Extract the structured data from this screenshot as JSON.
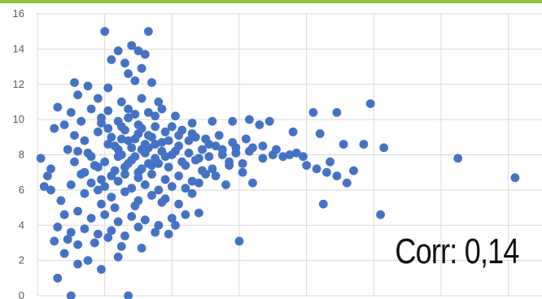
{
  "annotation": "Corr: 0,14",
  "colors": {
    "accent_bar": "#8dc63f",
    "marker": "#4472c4",
    "gridline": "#d9d9d9"
  },
  "chart_data": {
    "type": "scatter",
    "title": "",
    "xlabel": "",
    "ylabel": "",
    "ylim": [
      0,
      16
    ],
    "yticks": [
      "0",
      "2",
      "4",
      "6",
      "8",
      "10",
      "12",
      "14",
      "16"
    ],
    "x_tick_labels_visible": false,
    "grid": true,
    "legend": "none",
    "annotation": "Corr: 0,14",
    "correlation": 0.14,
    "series": [
      {
        "points": [
          [
            1.0,
            15.0
          ],
          [
            1.4,
            14.2
          ],
          [
            1.65,
            15.0
          ],
          [
            1.5,
            13.9
          ],
          [
            1.2,
            13.9
          ],
          [
            1.1,
            13.4
          ],
          [
            1.3,
            13.2
          ],
          [
            1.6,
            13.7
          ],
          [
            1.55,
            12.9
          ],
          [
            1.35,
            12.6
          ],
          [
            0.55,
            12.1
          ],
          [
            0.75,
            11.9
          ],
          [
            1.05,
            11.8
          ],
          [
            1.45,
            12.2
          ],
          [
            1.7,
            12.1
          ],
          [
            0.6,
            11.4
          ],
          [
            0.9,
            11.2
          ],
          [
            1.25,
            11.0
          ],
          [
            1.55,
            11.2
          ],
          [
            1.8,
            11.0
          ],
          [
            0.3,
            10.7
          ],
          [
            0.5,
            10.4
          ],
          [
            0.8,
            10.6
          ],
          [
            1.05,
            10.5
          ],
          [
            1.35,
            10.6
          ],
          [
            1.65,
            10.4
          ],
          [
            1.85,
            10.6
          ],
          [
            2.05,
            10.2
          ],
          [
            0.25,
            9.5
          ],
          [
            0.4,
            9.7
          ],
          [
            0.65,
            9.9
          ],
          [
            0.95,
            9.8
          ],
          [
            1.2,
            9.9
          ],
          [
            1.5,
            9.7
          ],
          [
            1.75,
            9.6
          ],
          [
            2.0,
            9.6
          ],
          [
            2.3,
            9.8
          ],
          [
            2.6,
            9.9
          ],
          [
            2.9,
            9.9
          ],
          [
            3.15,
            10.0
          ],
          [
            3.45,
            9.9
          ],
          [
            4.1,
            10.4
          ],
          [
            4.45,
            10.4
          ],
          [
            4.95,
            10.9
          ],
          [
            3.3,
            9.7
          ],
          [
            3.8,
            9.3
          ],
          [
            4.2,
            9.2
          ],
          [
            4.55,
            8.6
          ],
          [
            4.85,
            8.6
          ],
          [
            5.15,
            8.4
          ],
          [
            0.05,
            7.8
          ],
          [
            0.15,
            6.8
          ],
          [
            0.1,
            6.2
          ],
          [
            0.2,
            7.2
          ],
          [
            0.35,
            5.4
          ],
          [
            0.45,
            8.3
          ],
          [
            0.55,
            7.6
          ],
          [
            0.65,
            6.9
          ],
          [
            0.75,
            8.1
          ],
          [
            0.85,
            7.4
          ],
          [
            0.95,
            6.6
          ],
          [
            1.05,
            8.6
          ],
          [
            1.15,
            7.1
          ],
          [
            1.25,
            8.0
          ],
          [
            1.35,
            7.5
          ],
          [
            1.45,
            8.9
          ],
          [
            1.55,
            7.2
          ],
          [
            1.65,
            8.4
          ],
          [
            1.75,
            7.8
          ],
          [
            1.85,
            8.7
          ],
          [
            1.95,
            7.3
          ],
          [
            2.05,
            8.2
          ],
          [
            2.15,
            7.6
          ],
          [
            2.25,
            8.8
          ],
          [
            2.35,
            7.7
          ],
          [
            2.45,
            8.3
          ],
          [
            2.55,
            7.9
          ],
          [
            2.65,
            8.5
          ],
          [
            2.75,
            8.0
          ],
          [
            2.85,
            7.6
          ],
          [
            2.95,
            8.1
          ],
          [
            3.05,
            7.5
          ],
          [
            3.2,
            8.4
          ],
          [
            3.35,
            7.8
          ],
          [
            3.5,
            8.0
          ],
          [
            3.65,
            7.9
          ],
          [
            3.85,
            8.1
          ],
          [
            4.0,
            7.4
          ],
          [
            4.15,
            7.2
          ],
          [
            4.3,
            7.0
          ],
          [
            4.45,
            6.8
          ],
          [
            4.6,
            6.4
          ],
          [
            4.25,
            5.2
          ],
          [
            3.2,
            6.4
          ],
          [
            2.8,
            6.3
          ],
          [
            6.25,
            7.8
          ],
          [
            7.1,
            6.7
          ],
          [
            5.1,
            4.6
          ],
          [
            3.0,
            3.1
          ],
          [
            0.2,
            6.0
          ],
          [
            0.5,
            6.3
          ],
          [
            0.7,
            5.8
          ],
          [
            0.9,
            6.0
          ],
          [
            1.1,
            5.6
          ],
          [
            1.3,
            5.9
          ],
          [
            1.5,
            5.4
          ],
          [
            1.7,
            5.7
          ],
          [
            1.9,
            5.5
          ],
          [
            2.1,
            5.2
          ],
          [
            2.3,
            5.8
          ],
          [
            0.4,
            4.6
          ],
          [
            0.6,
            4.8
          ],
          [
            0.8,
            4.4
          ],
          [
            1.0,
            4.6
          ],
          [
            1.2,
            4.2
          ],
          [
            1.4,
            4.5
          ],
          [
            1.6,
            4.3
          ],
          [
            1.8,
            4.0
          ],
          [
            2.0,
            4.4
          ],
          [
            2.2,
            4.6
          ],
          [
            2.4,
            4.7
          ],
          [
            0.3,
            3.9
          ],
          [
            0.5,
            3.6
          ],
          [
            0.7,
            3.8
          ],
          [
            0.9,
            3.5
          ],
          [
            1.1,
            3.7
          ],
          [
            1.3,
            3.4
          ],
          [
            1.5,
            3.9
          ],
          [
            1.75,
            3.6
          ],
          [
            2.05,
            4.0
          ],
          [
            0.25,
            3.1
          ],
          [
            0.45,
            3.2
          ],
          [
            0.6,
            2.9
          ],
          [
            0.85,
            3.0
          ],
          [
            1.05,
            3.3
          ],
          [
            1.25,
            2.8
          ],
          [
            1.55,
            2.7
          ],
          [
            1.95,
            3.5
          ],
          [
            0.4,
            2.4
          ],
          [
            0.75,
            2.0
          ],
          [
            1.2,
            2.2
          ],
          [
            0.6,
            1.8
          ],
          [
            0.95,
            1.5
          ],
          [
            0.3,
            1.0
          ],
          [
            0.5,
            0.0
          ],
          [
            1.35,
            0.0
          ],
          [
            0.55,
            9.1
          ],
          [
            0.7,
            8.8
          ],
          [
            0.9,
            9.3
          ],
          [
            1.1,
            9.0
          ],
          [
            1.3,
            9.4
          ],
          [
            1.5,
            9.2
          ],
          [
            1.7,
            9.0
          ],
          [
            1.9,
            9.3
          ],
          [
            2.1,
            9.1
          ],
          [
            2.3,
            9.2
          ],
          [
            2.5,
            8.9
          ],
          [
            2.7,
            9.1
          ],
          [
            2.9,
            8.7
          ],
          [
            3.1,
            8.9
          ],
          [
            0.6,
            8.2
          ],
          [
            0.8,
            7.9
          ],
          [
            1.0,
            7.6
          ],
          [
            1.2,
            8.3
          ],
          [
            1.4,
            7.7
          ],
          [
            1.6,
            8.1
          ],
          [
            1.8,
            7.5
          ],
          [
            2.0,
            8.0
          ],
          [
            2.2,
            7.4
          ],
          [
            2.4,
            7.8
          ],
          [
            2.6,
            7.2
          ],
          [
            0.7,
            7.0
          ],
          [
            0.9,
            7.3
          ],
          [
            1.1,
            6.8
          ],
          [
            1.3,
            6.9
          ],
          [
            1.5,
            6.7
          ],
          [
            1.7,
            6.9
          ],
          [
            1.9,
            6.6
          ],
          [
            2.1,
            6.8
          ],
          [
            2.3,
            6.5
          ],
          [
            2.5,
            6.9
          ],
          [
            0.8,
            6.4
          ],
          [
            1.0,
            6.2
          ],
          [
            1.2,
            6.5
          ],
          [
            1.4,
            6.1
          ],
          [
            1.6,
            6.3
          ],
          [
            1.8,
            6.0
          ],
          [
            2.0,
            6.2
          ],
          [
            2.2,
            6.1
          ],
          [
            2.4,
            6.4
          ],
          [
            1.15,
            8.5
          ],
          [
            1.25,
            9.6
          ],
          [
            1.35,
            10.1
          ],
          [
            1.45,
            10.3
          ],
          [
            1.55,
            9.5
          ],
          [
            1.65,
            9.1
          ],
          [
            1.05,
            9.5
          ],
          [
            0.95,
            10.1
          ],
          [
            1.75,
            10.2
          ],
          [
            1.6,
            8.6
          ],
          [
            1.4,
            8.4
          ],
          [
            1.2,
            7.9
          ],
          [
            1.3,
            7.3
          ],
          [
            1.5,
            7.0
          ],
          [
            1.7,
            7.4
          ],
          [
            1.9,
            7.9
          ],
          [
            2.1,
            8.5
          ],
          [
            2.25,
            8.1
          ],
          [
            1.85,
            8.2
          ],
          [
            1.65,
            7.5
          ],
          [
            1.45,
            7.9
          ],
          [
            1.35,
            8.8
          ],
          [
            1.25,
            8.9
          ],
          [
            1.55,
            8.3
          ],
          [
            1.75,
            8.6
          ],
          [
            1.95,
            8.8
          ],
          [
            2.15,
            9.4
          ],
          [
            2.35,
            9.0
          ],
          [
            2.55,
            8.6
          ],
          [
            2.75,
            8.3
          ],
          [
            2.95,
            8.4
          ],
          [
            3.15,
            8.2
          ],
          [
            3.35,
            8.5
          ],
          [
            3.55,
            8.3
          ],
          [
            3.75,
            8.0
          ],
          [
            3.95,
            7.9
          ],
          [
            4.35,
            7.6
          ],
          [
            4.7,
            7.1
          ],
          [
            2.85,
            7.4
          ],
          [
            3.05,
            7.0
          ],
          [
            2.65,
            6.8
          ],
          [
            2.45,
            7.1
          ],
          [
            0.95,
            5.2
          ],
          [
            1.15,
            5.0
          ],
          [
            1.45,
            5.1
          ],
          [
            1.85,
            5.3
          ]
        ]
      }
    ]
  }
}
